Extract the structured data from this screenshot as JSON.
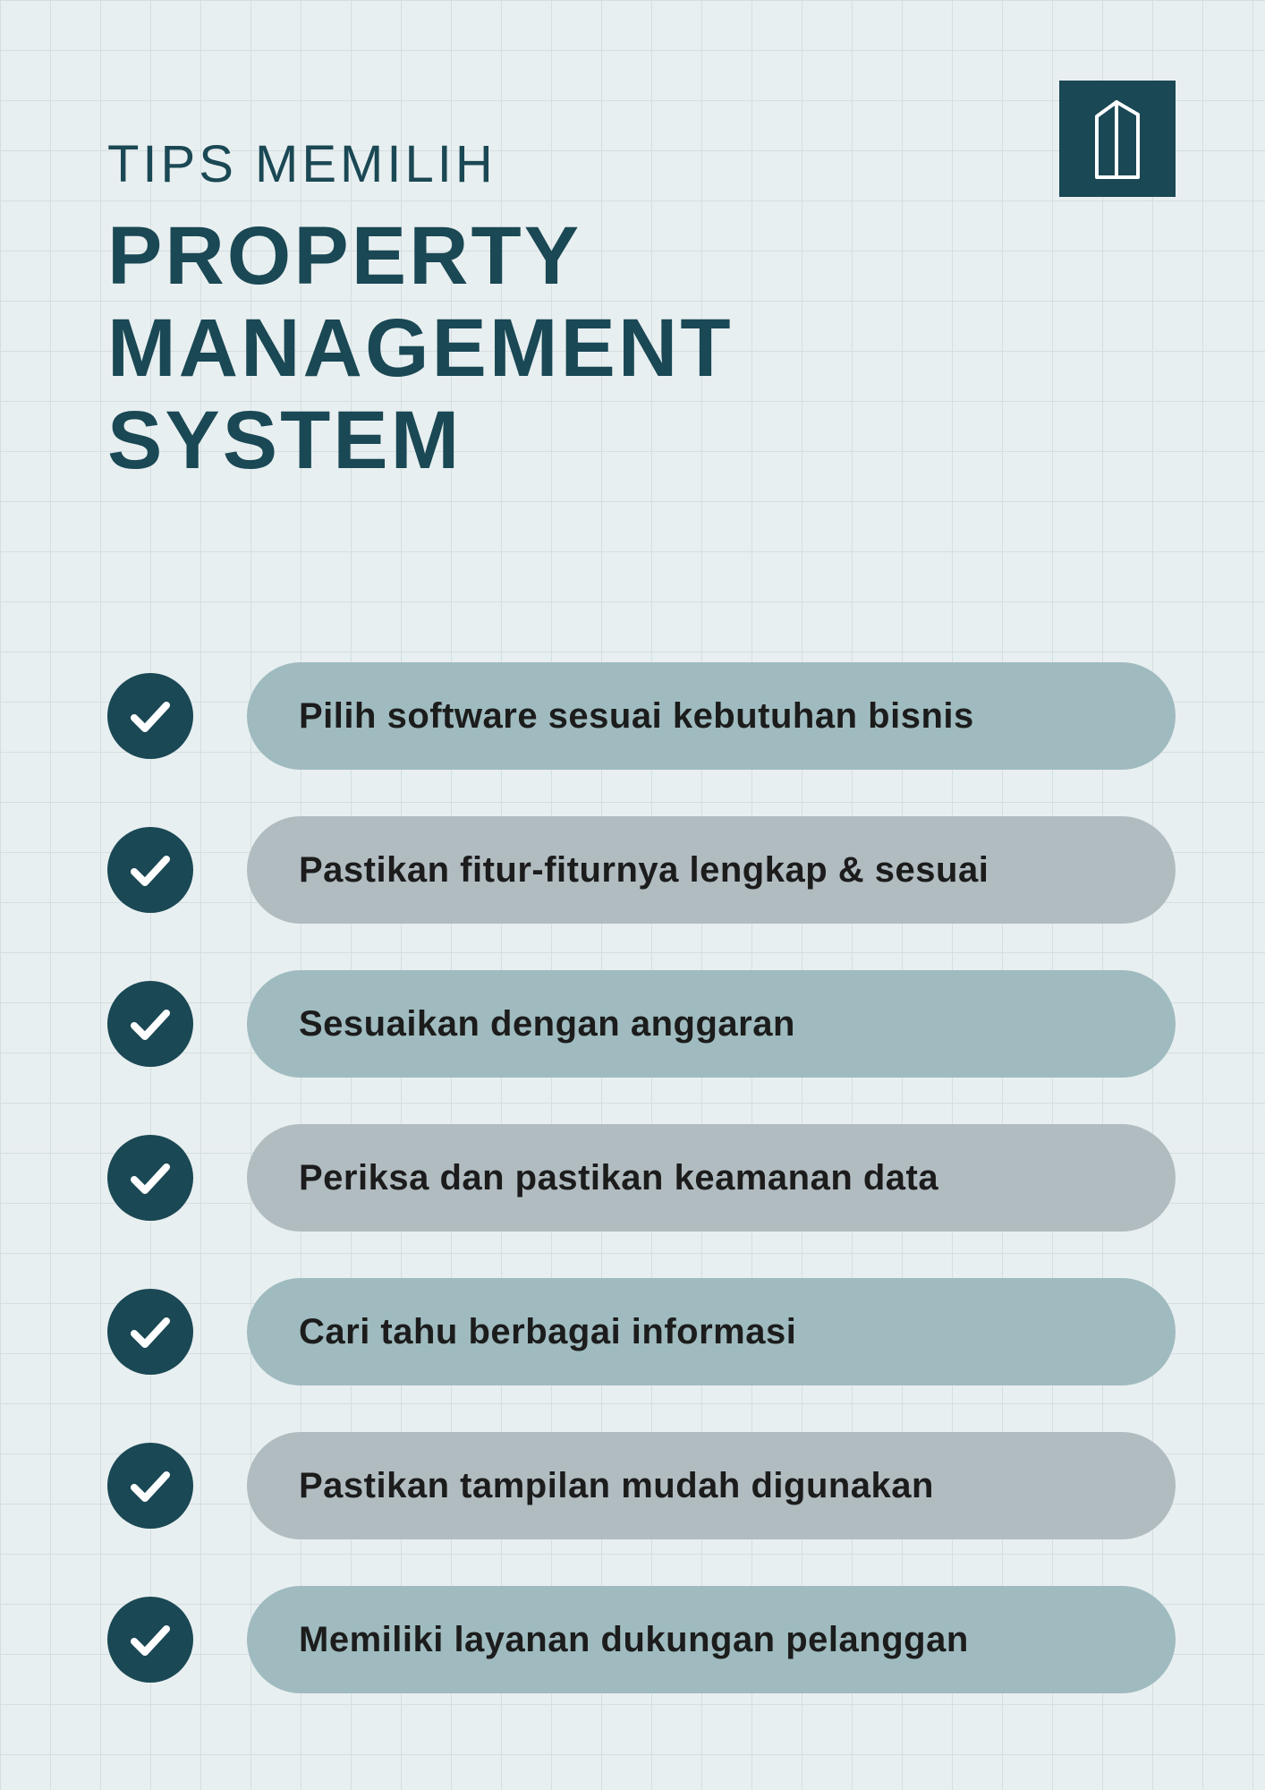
{
  "colors": {
    "background": "#e8eff0",
    "grid": "#d5dee0",
    "dark_teal": "#1a4854",
    "pill_teal": "#9fbbbf",
    "pill_gray": "#b1bcc1",
    "text_dark": "#1c1c1c",
    "check_stroke": "#ffffff"
  },
  "typography": {
    "subtitle_fontsize": 58,
    "title_fontsize": 92,
    "item_fontsize": 40,
    "subtitle_weight": 500,
    "title_weight": 800,
    "item_weight": 600
  },
  "layout": {
    "grid_cell": 56,
    "check_diameter": 96,
    "pill_height": 120,
    "pill_radius": 60,
    "gap": 52
  },
  "header": {
    "subtitle": "TIPS MEMILIH",
    "title_line1": "PROPERTY",
    "title_line2": "MANAGEMENT",
    "title_line3": "SYSTEM"
  },
  "items": [
    {
      "text": "Pilih software sesuai kebutuhan bisnis",
      "color": "#9fbbbf"
    },
    {
      "text": "Pastikan fitur-fiturnya lengkap & sesuai",
      "color": "#b1bcc1"
    },
    {
      "text": "Sesuaikan dengan anggaran",
      "color": "#9fbbbf"
    },
    {
      "text": "Periksa dan pastikan keamanan data",
      "color": "#b1bcc1"
    },
    {
      "text": "Cari tahu berbagai informasi",
      "color": "#9fbbbf"
    },
    {
      "text": "Pastikan tampilan mudah digunakan",
      "color": "#b1bcc1"
    },
    {
      "text": "Memiliki layanan dukungan pelanggan",
      "color": "#9fbbbf"
    }
  ]
}
